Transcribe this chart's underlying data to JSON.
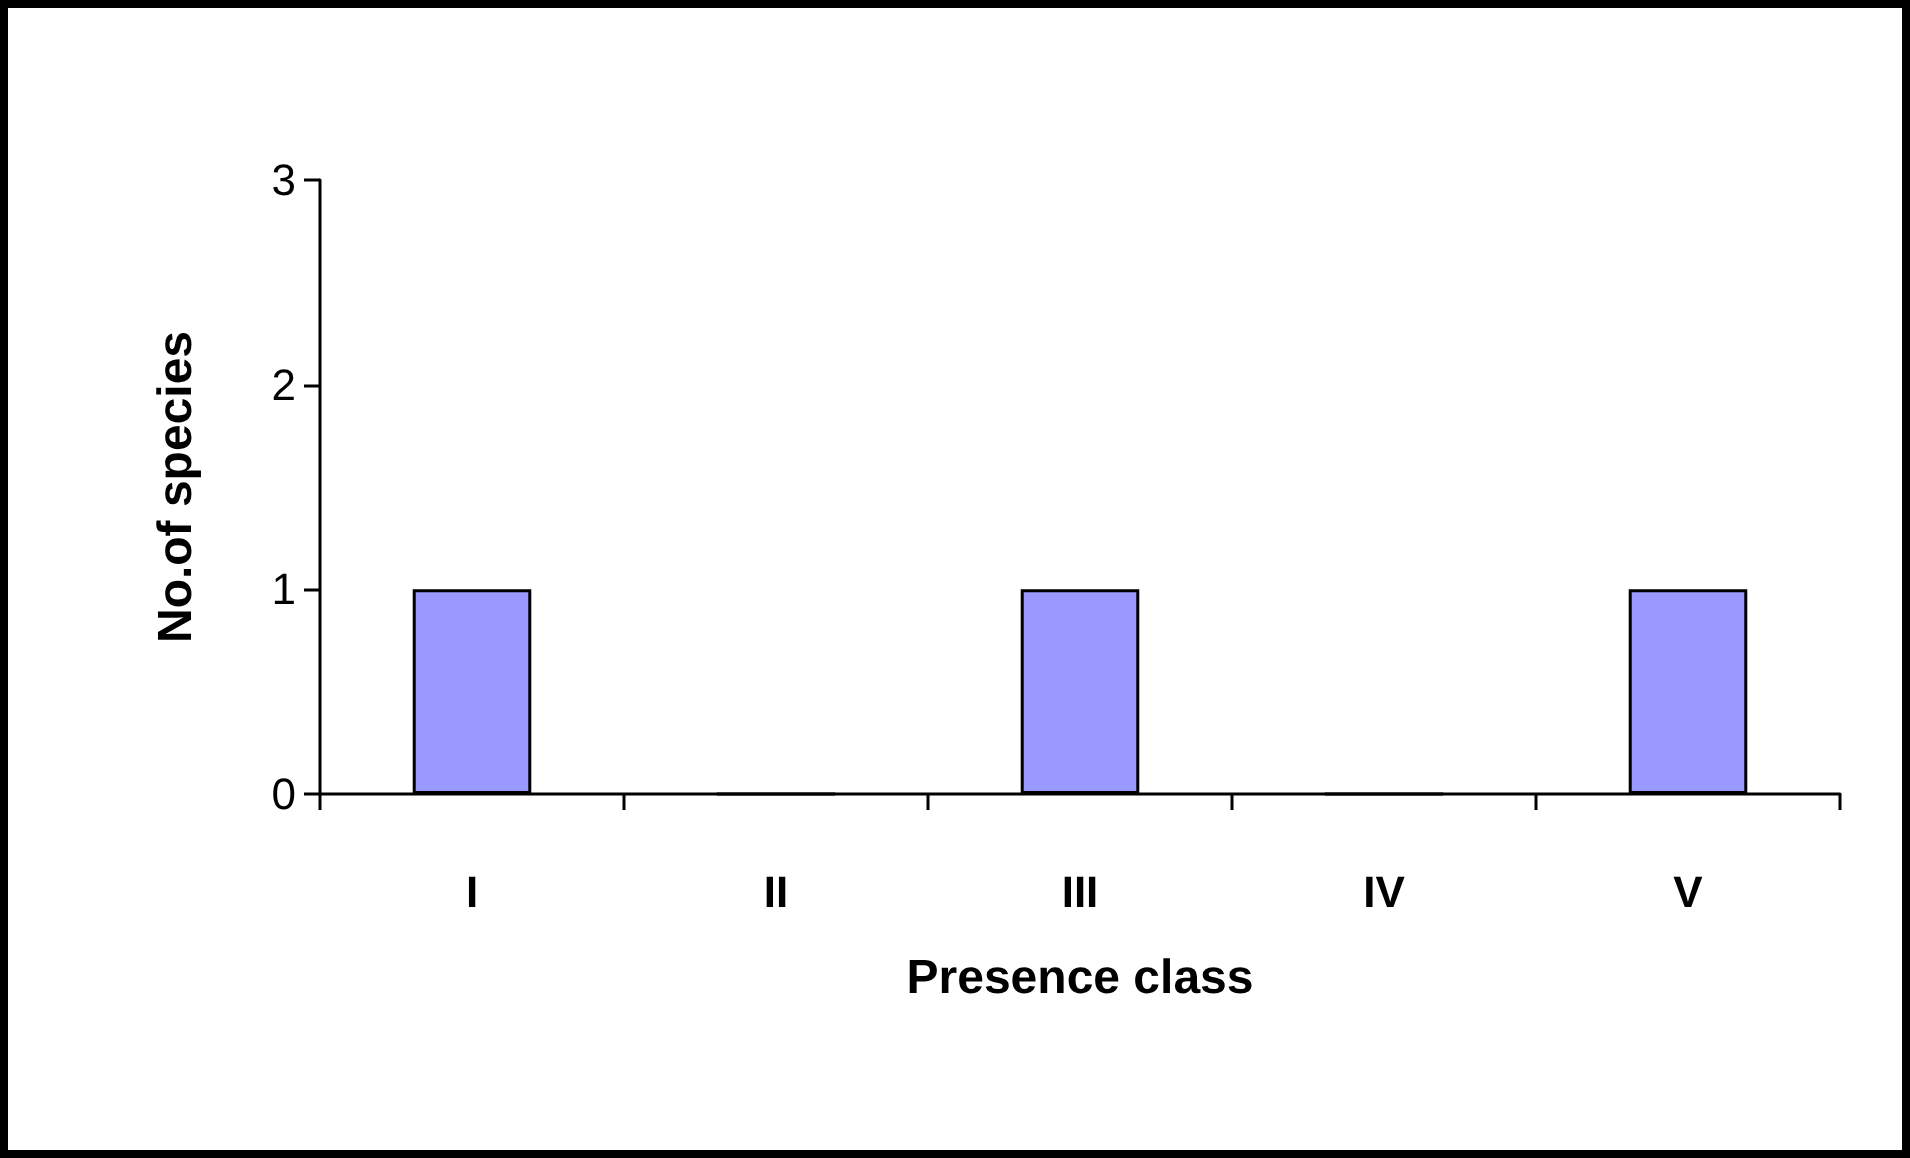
{
  "chart_data": {
    "type": "bar",
    "xlabel": "Presence class",
    "ylabel": "No.of species",
    "categories": [
      "I",
      "II",
      "III",
      "IV",
      "V"
    ],
    "values": [
      1,
      0,
      1,
      0,
      1
    ],
    "color": "#9999ff",
    "ylim": [
      0,
      3
    ],
    "yticks": [
      0,
      1,
      2,
      3
    ],
    "grid": false
  }
}
